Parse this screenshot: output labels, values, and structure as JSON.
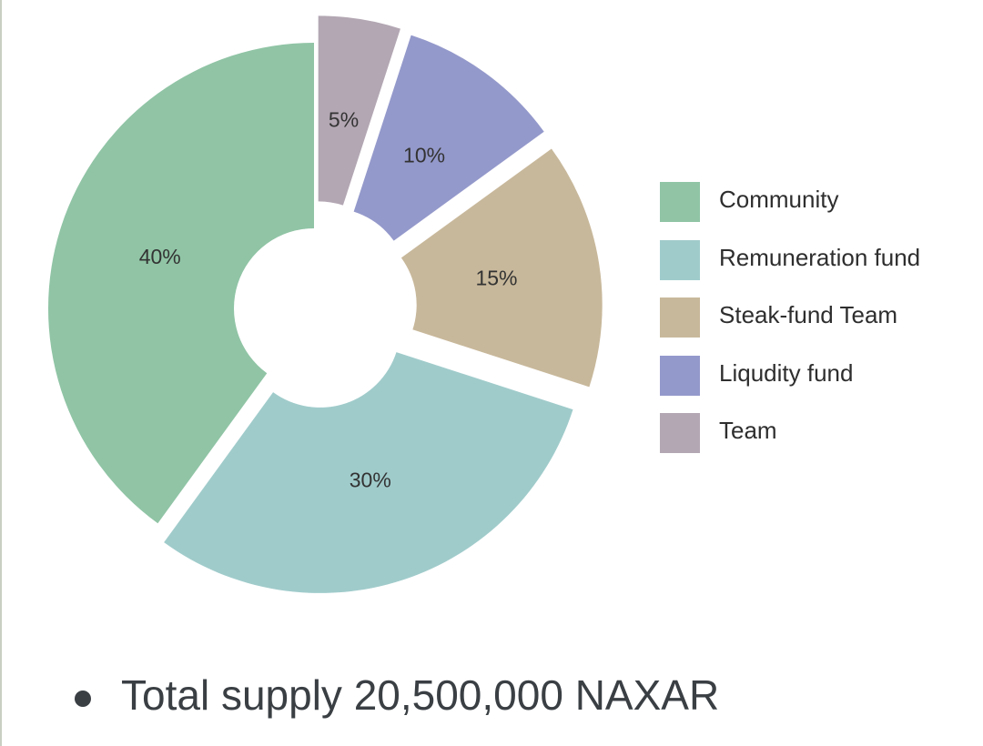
{
  "chart_data": {
    "type": "pie",
    "donut": true,
    "exploded": true,
    "title": "",
    "slices": [
      {
        "name": "Community",
        "value": 40,
        "label": "40%",
        "color": "#90c4a5"
      },
      {
        "name": "Remuneration fund",
        "value": 30,
        "label": "30%",
        "color": "#a0cbcb"
      },
      {
        "name": "Steak-fund Team",
        "value": 15,
        "label": "15%",
        "color": "#c8b89b"
      },
      {
        "name": "Liqudity fund",
        "value": 10,
        "label": "10%",
        "color": "#9499cb"
      },
      {
        "name": "Team",
        "value": 5,
        "label": "5%",
        "color": "#b3a7b3"
      }
    ],
    "legend_position": "right"
  },
  "footer": {
    "supply_text": "Total supply 20,500,000 NAXAR"
  }
}
